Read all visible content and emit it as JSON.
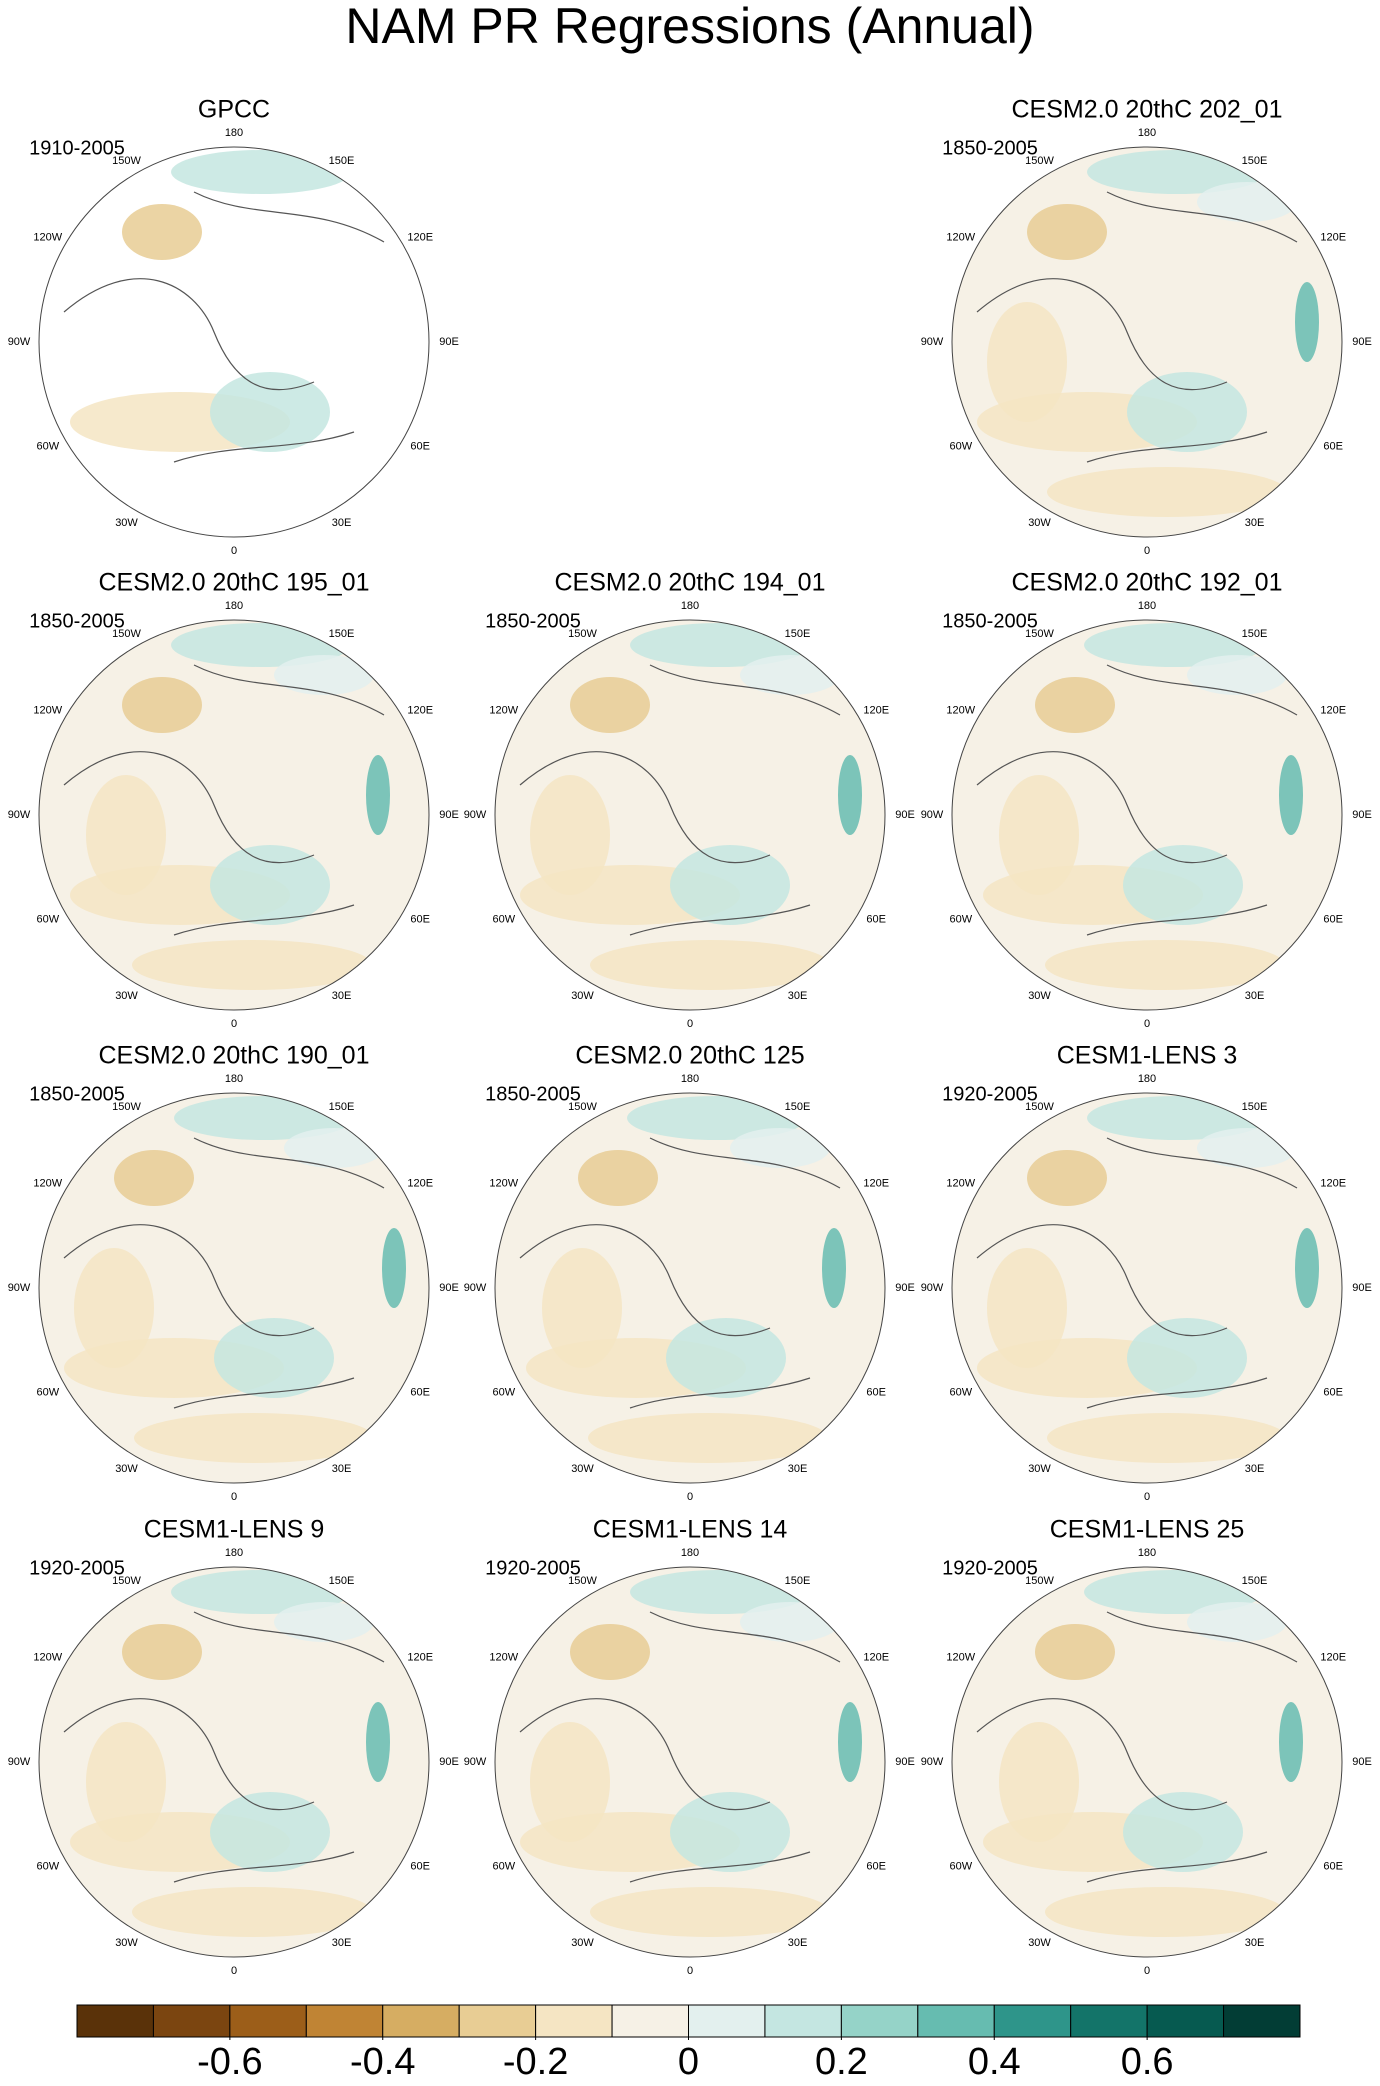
{
  "title": "NAM PR Regressions (Annual)",
  "lon_labels": [
    "180",
    "150E",
    "120E",
    "90E",
    "60E",
    "30E",
    "0",
    "30W",
    "60W",
    "90W",
    "120W",
    "150W"
  ],
  "panels": [
    {
      "title": "GPCC",
      "period": "1910-2005"
    },
    {
      "title": "CESM2.0 20thC 202_01",
      "period": "1850-2005"
    },
    {
      "title": "CESM2.0 20thC 195_01",
      "period": "1850-2005"
    },
    {
      "title": "CESM2.0 20thC 194_01",
      "period": "1850-2005"
    },
    {
      "title": "CESM2.0 20thC 192_01",
      "period": "1850-2005"
    },
    {
      "title": "CESM2.0 20thC 190_01",
      "period": "1850-2005"
    },
    {
      "title": "CESM2.0 20thC 125",
      "period": "1850-2005"
    },
    {
      "title": "CESM1-LENS 3",
      "period": "1920-2005"
    },
    {
      "title": "CESM1-LENS 9",
      "period": "1920-2005"
    },
    {
      "title": "CESM1-LENS 14",
      "period": "1920-2005"
    },
    {
      "title": "CESM1-LENS 25",
      "period": "1920-2005"
    }
  ],
  "colorbar": {
    "range": [
      -0.8,
      0.8
    ],
    "ticks": [
      -0.6,
      -0.4,
      -0.2,
      0,
      0.2,
      0.4,
      0.6
    ],
    "colors": [
      "#5a3209",
      "#7b4510",
      "#9c5e19",
      "#c08434",
      "#d6ad62",
      "#e8cd94",
      "#f5e5c3",
      "#f6f1e6",
      "#e3f0ee",
      "#c4e6e1",
      "#95d3c8",
      "#66bcb0",
      "#2e958a",
      "#137469",
      "#065a50",
      "#023d35"
    ]
  }
}
